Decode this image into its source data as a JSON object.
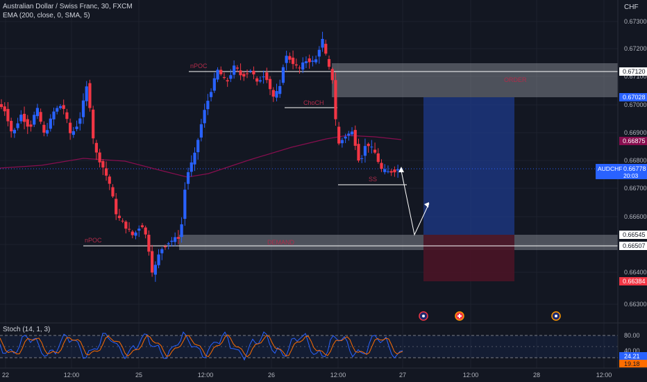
{
  "header": {
    "symbol_title": "Australian Dollar / Swiss Franc, 30, FXCM",
    "ema_indicator": "EMA (200, close, 0, SMA, 5)",
    "currency": "CHF"
  },
  "stoch": {
    "label": "Stoch (14, 1, 3)",
    "scale_ticks": [
      "80.00",
      "40.00"
    ],
    "k_value": "24.21",
    "d_value": "19.18",
    "k_color": "#2962ff",
    "d_color": "#ff6d00"
  },
  "price_axis": {
    "ticks": [
      "0.67300",
      "0.67200",
      "0.67100",
      "0.67000",
      "0.66900",
      "0.66800",
      "0.66700",
      "0.66600",
      "0.66500",
      "0.66400",
      "0.66300"
    ]
  },
  "price_tags": [
    {
      "text": "0.67120",
      "style": "white"
    },
    {
      "text": "0.67028",
      "style": "blue"
    },
    {
      "text": "0.66875",
      "style": "maroon"
    },
    {
      "text": "0.66545",
      "style": "white"
    },
    {
      "text": "0.66507",
      "style": "white"
    },
    {
      "text": "0.66384",
      "style": "red"
    }
  ],
  "current_tag": {
    "symbol": "AUDCHF",
    "price": "0.66778",
    "countdown": "20:03"
  },
  "time_axis": {
    "labels": [
      "22",
      "12:00",
      "25",
      "12:00",
      "26",
      "12:00",
      "27",
      "12:00",
      "28",
      "12:00"
    ]
  },
  "annotations": {
    "npoc_top": "nPOC",
    "npoc_bottom": "nPOC",
    "choch": "ChoCH",
    "ss": "SS",
    "zone_top_label": "ORDER",
    "zone_bottom_label": "DEMAND"
  },
  "colors": {
    "background": "#131722",
    "bull": "#2962ff",
    "bear": "#f23645",
    "ema": "#880e4f",
    "zone": "#9598a1",
    "target": "#1e3a8a",
    "stop": "#4a1426"
  }
}
